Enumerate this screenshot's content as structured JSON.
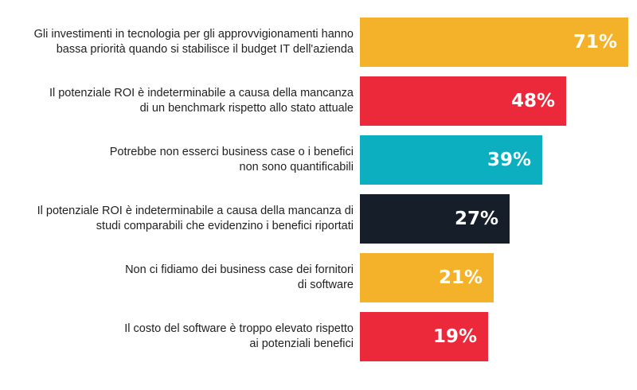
{
  "chart_data": {
    "type": "bar",
    "orientation": "horizontal",
    "title": "",
    "xlabel": "",
    "ylabel": "",
    "unit": "%",
    "categories": [
      [
        "Gli investimenti in tecnologia per gli approvvigionamenti hanno",
        "bassa priorità quando si stabilisce il budget IT dell'azienda"
      ],
      [
        "Il potenziale ROI è indeterminabile a causa della mancanza",
        "di un benchmark rispetto allo stato attuale"
      ],
      [
        "Potrebbe non esserci business case o i benefici",
        "non sono quantificabili"
      ],
      [
        "Il potenziale ROI è indeterminabile a causa della mancanza di",
        "studi comparabili che evidenzino i benefici riportati"
      ],
      [
        "Non ci fidiamo dei business case dei fornitori",
        "di software"
      ],
      [
        "Il costo del software è troppo elevato rispetto",
        "ai potenziali benefici"
      ]
    ],
    "values": [
      71,
      48,
      39,
      27,
      21,
      19
    ],
    "value_labels": [
      "71%",
      "48%",
      "39%",
      "27%",
      "21%",
      "19%"
    ],
    "colors": [
      "#F4B22B",
      "#EC283B",
      "#0BAFBF",
      "#161E29",
      "#F4B22B",
      "#EC283B"
    ],
    "grid": false,
    "legend": "none"
  }
}
